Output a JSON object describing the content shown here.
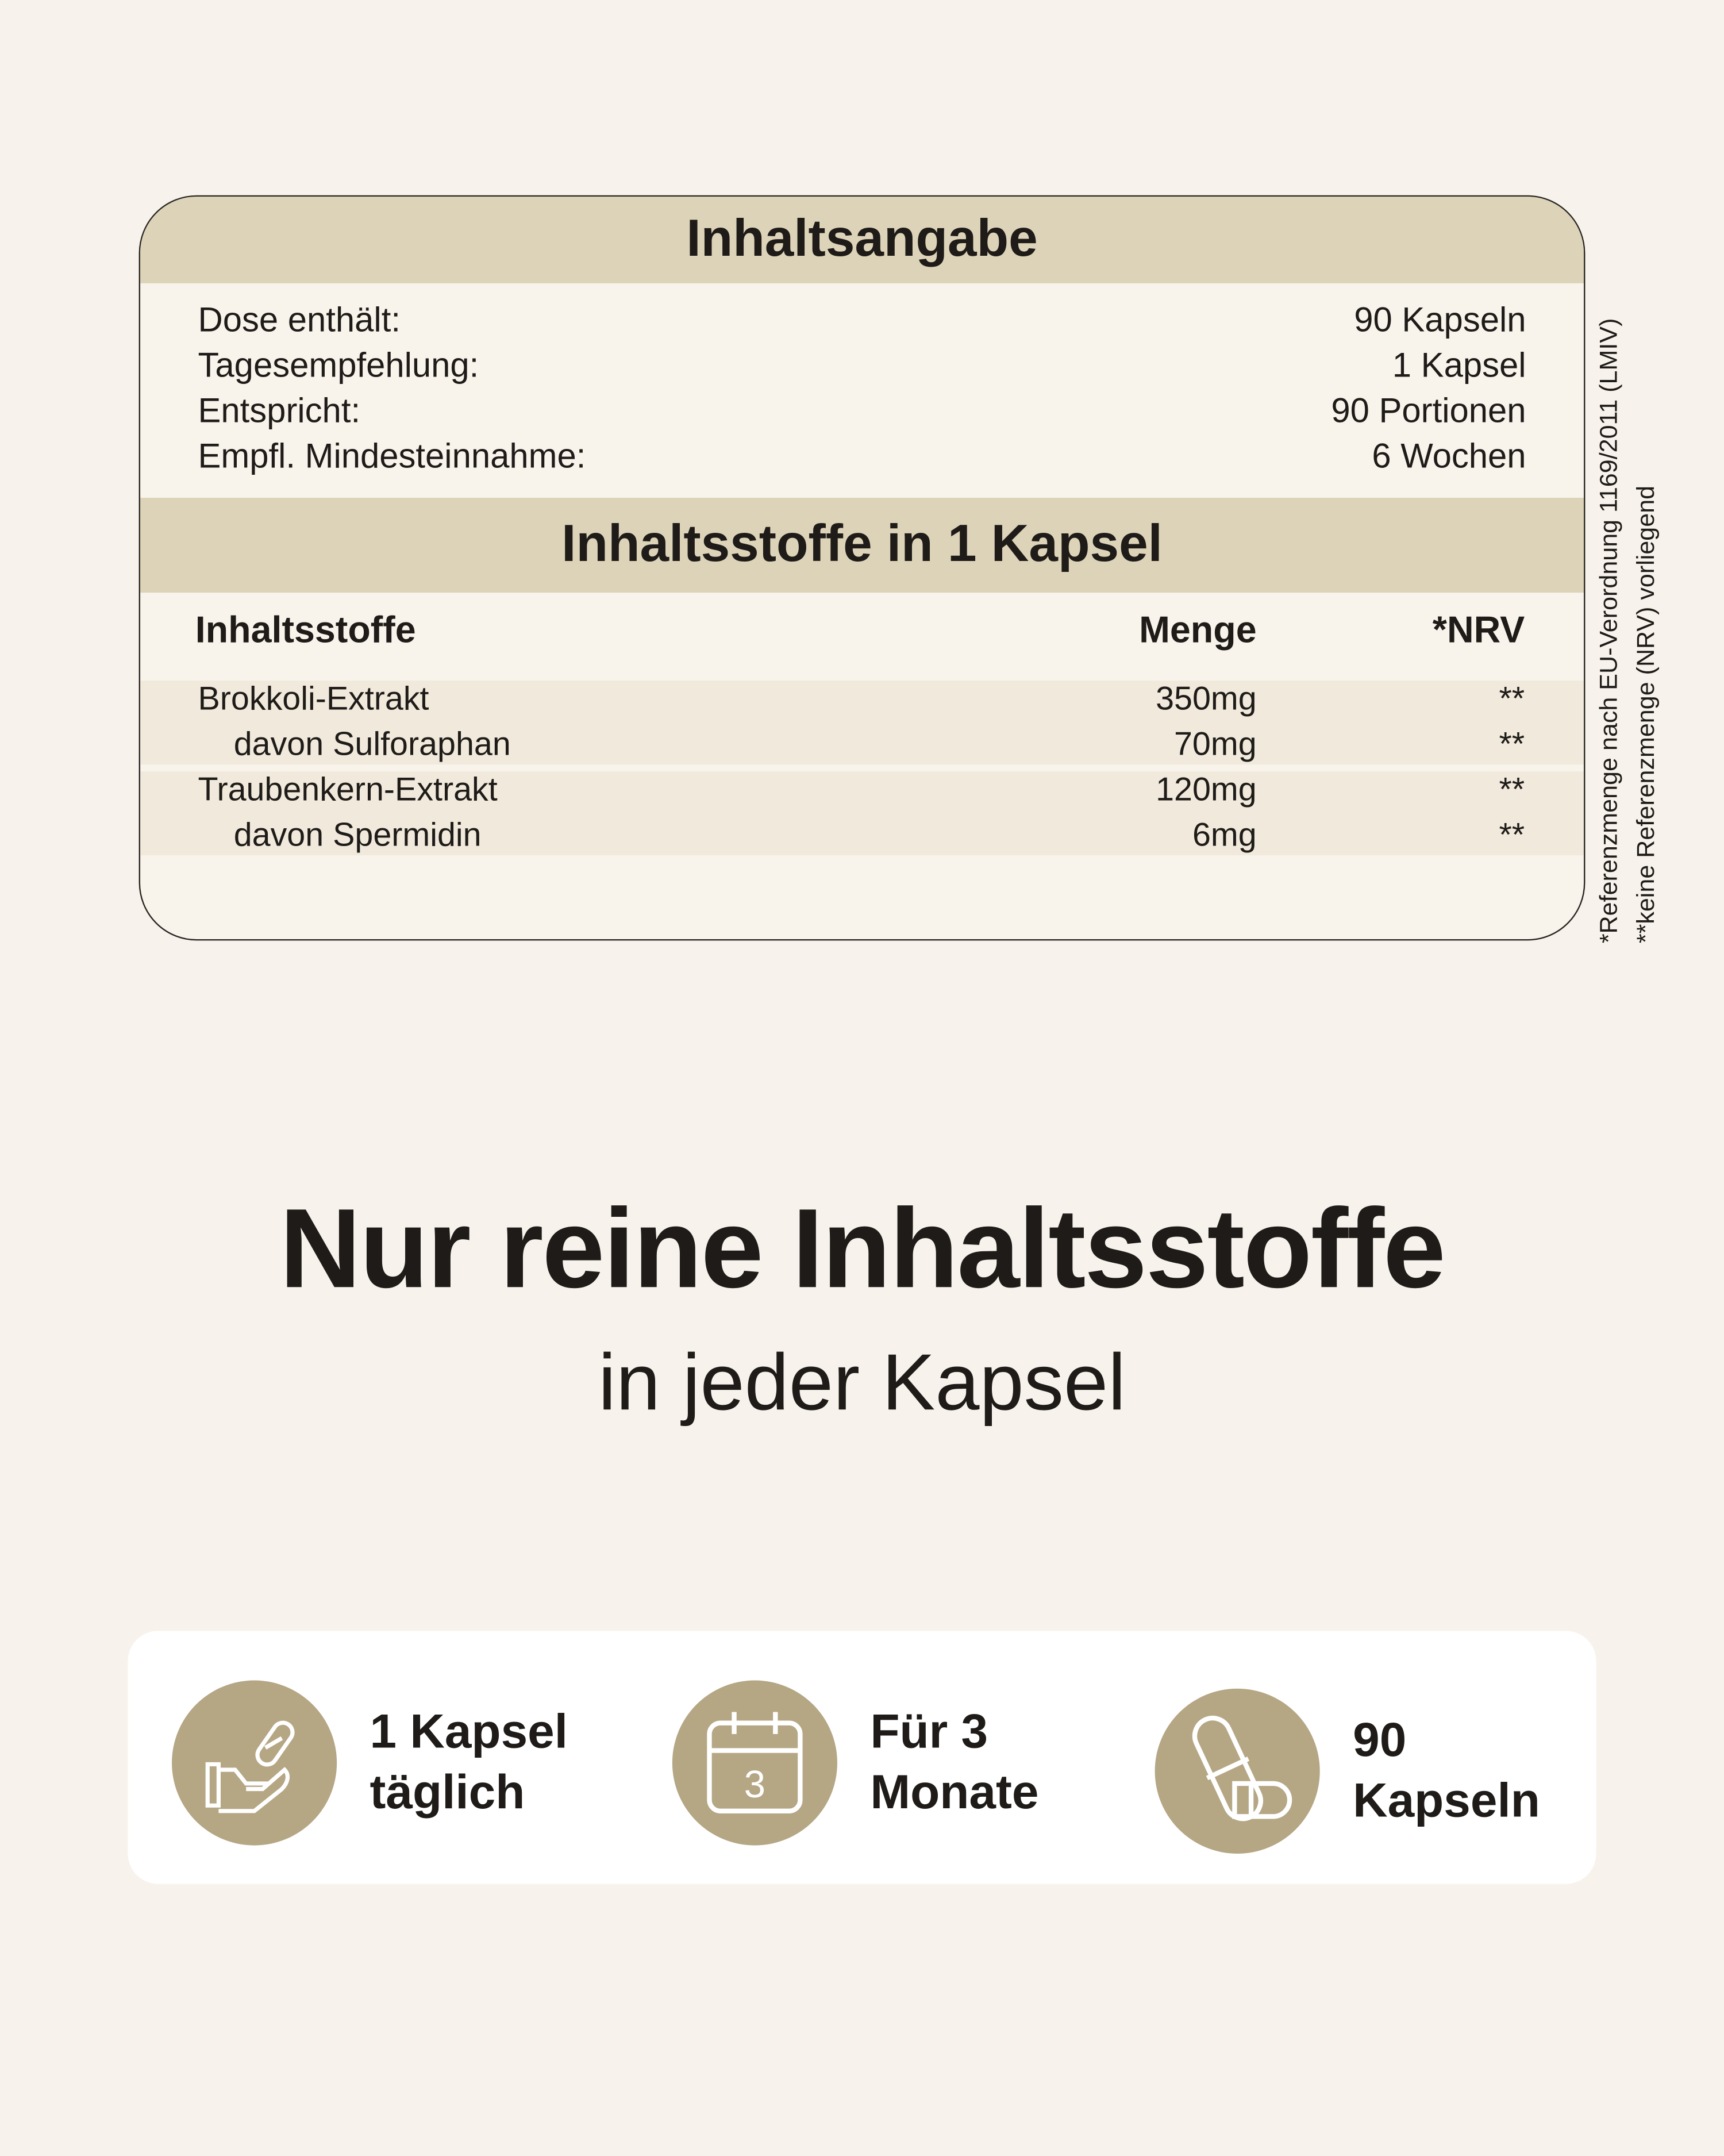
{
  "card": {
    "header1": "Inhaltsangabe",
    "info": [
      {
        "label": "Dose enthält:",
        "value": "90 Kapseln"
      },
      {
        "label": "Tagesempfehlung:",
        "value": "1 Kapsel"
      },
      {
        "label": "Entspricht:",
        "value": "90 Portionen"
      },
      {
        "label": "Empfl. Mindesteinnahme:",
        "value": "6 Wochen"
      }
    ],
    "header2": "Inhaltsstoffe in 1 Kapsel",
    "columns": [
      "Inhaltsstoffe",
      "Menge",
      "*NRV"
    ],
    "rows": [
      {
        "name": "Brokkoli-Extrakt",
        "amount": "350mg",
        "nrv": "**"
      },
      {
        "name": "davon Sulforaphan",
        "amount": "70mg",
        "nrv": "**"
      },
      {
        "name": "Traubenkern-Extrakt",
        "amount": "120mg",
        "nrv": "**"
      },
      {
        "name": "davon Spermidin",
        "amount": "6mg",
        "nrv": "**"
      }
    ]
  },
  "footnotes": [
    "*Referenzmenge nach EU-Verordnung 1169/2011 (LMIV)",
    "**keine Referenzmenge (NRV) vorliegend"
  ],
  "headline": "Nur reine Inhaltsstoffe",
  "subheadline": "in jeder Kapsel",
  "features": [
    {
      "icon": "hand-capsule-icon",
      "line1": "1 Kapsel",
      "line2": "täglich"
    },
    {
      "icon": "calendar-icon",
      "line1": "Für 3",
      "line2": "Monate",
      "calendar_number": "3"
    },
    {
      "icon": "capsules-icon",
      "line1": "90",
      "line2": "Kapseln"
    }
  ],
  "colors": {
    "background": "#f7f3ec",
    "band": "#ddd3b8",
    "accent": "#b5a684",
    "shade": "#f0e9dc"
  }
}
